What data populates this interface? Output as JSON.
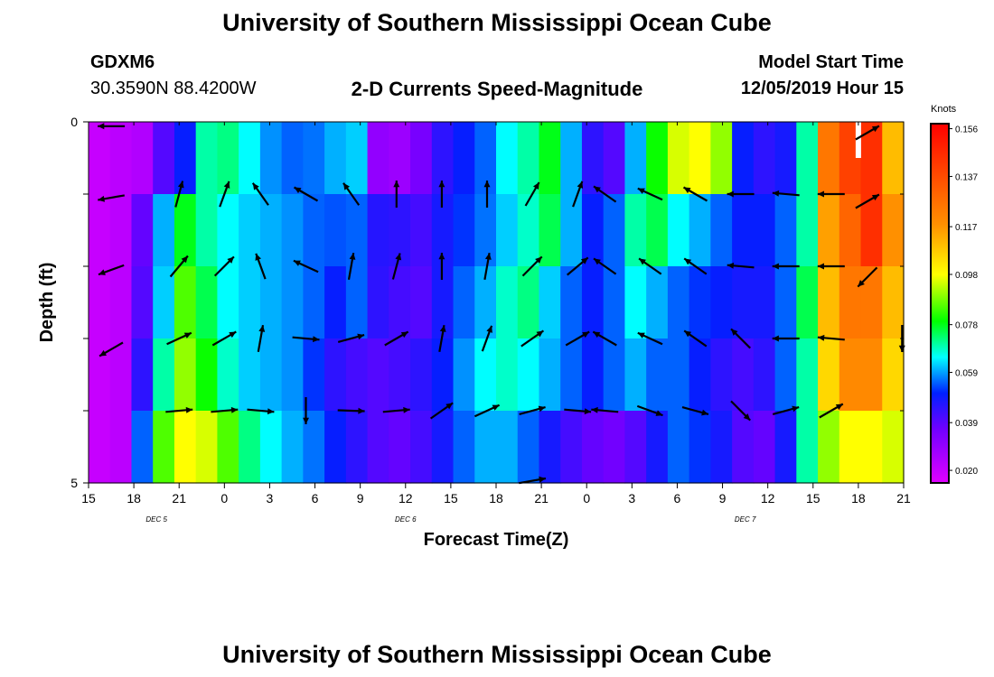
{
  "page": {
    "title_top": "University of Southern Mississippi Ocean Cube",
    "title_bottom": "University of Southern Mississippi Ocean Cube",
    "station": "GDXM6",
    "coords": "30.3590N 88.4200W",
    "subtitle": "2-D Currents Speed-Magnitude",
    "model_label": "Model Start Time",
    "model_time": "12/05/2019 Hour 15"
  },
  "chart_data": {
    "type": "heatmap",
    "title": "2-D Currents Speed-Magnitude",
    "xlabel": "Forecast Time(Z)",
    "ylabel": "Depth (ft)",
    "x_start_hour": 15,
    "x_range_hours": [
      0,
      54
    ],
    "x_tick_labels": [
      "15",
      "18",
      "21",
      "0",
      "3",
      "6",
      "9",
      "12",
      "15",
      "18",
      "21",
      "0",
      "3",
      "6",
      "9",
      "12",
      "15",
      "18",
      "21"
    ],
    "day_labels": [
      {
        "text": "DEC 5",
        "hour": 19.5
      },
      {
        "text": "DEC 6",
        "hour": 36
      },
      {
        "text": "DEC 7",
        "hour": 58.5
      }
    ],
    "y_range": [
      0,
      5
    ],
    "y_tick_labels": [
      "0",
      "5"
    ],
    "colorbar": {
      "unit": "Knots",
      "ticks": [
        0.02,
        0.039,
        0.059,
        0.078,
        0.098,
        0.117,
        0.137,
        0.156
      ],
      "tick_labels": [
        "0.020",
        "0.039",
        "0.059",
        "0.078",
        "0.098",
        "0.117",
        "0.137",
        "0.156"
      ],
      "range": [
        0.015,
        0.158
      ]
    },
    "depth_rows": [
      0.5,
      1.5,
      2.5,
      3.5,
      4.5
    ],
    "hour_step": 1.5,
    "speed_knots": [
      [
        0.02,
        0.022,
        0.024,
        0.04,
        0.05,
        0.07,
        0.072,
        0.065,
        0.058,
        0.055,
        0.056,
        0.06,
        0.062,
        0.03,
        0.028,
        0.035,
        0.045,
        0.05,
        0.055,
        0.065,
        0.07,
        0.078,
        0.06,
        0.045,
        0.04,
        0.06,
        0.08,
        0.095,
        0.098,
        0.09,
        0.05,
        0.045,
        0.048,
        0.07,
        0.125,
        0.14,
        0.145,
        0.11
      ],
      [
        0.02,
        0.022,
        0.038,
        0.06,
        0.078,
        0.07,
        0.065,
        0.062,
        0.06,
        0.058,
        0.055,
        0.054,
        0.055,
        0.046,
        0.045,
        0.042,
        0.048,
        0.052,
        0.056,
        0.062,
        0.068,
        0.075,
        0.06,
        0.05,
        0.055,
        0.07,
        0.075,
        0.065,
        0.06,
        0.055,
        0.05,
        0.05,
        0.055,
        0.07,
        0.115,
        0.13,
        0.145,
        0.118
      ],
      [
        0.02,
        0.022,
        0.04,
        0.062,
        0.085,
        0.075,
        0.065,
        0.062,
        0.06,
        0.058,
        0.055,
        0.05,
        0.055,
        0.045,
        0.042,
        0.04,
        0.048,
        0.055,
        0.06,
        0.068,
        0.072,
        0.062,
        0.055,
        0.05,
        0.055,
        0.065,
        0.06,
        0.055,
        0.052,
        0.05,
        0.048,
        0.048,
        0.055,
        0.075,
        0.11,
        0.125,
        0.125,
        0.11
      ],
      [
        0.02,
        0.022,
        0.045,
        0.07,
        0.09,
        0.08,
        0.068,
        0.062,
        0.06,
        0.058,
        0.052,
        0.045,
        0.042,
        0.04,
        0.042,
        0.045,
        0.05,
        0.058,
        0.065,
        0.068,
        0.065,
        0.06,
        0.055,
        0.05,
        0.055,
        0.06,
        0.055,
        0.055,
        0.05,
        0.045,
        0.042,
        0.045,
        0.055,
        0.07,
        0.105,
        0.12,
        0.12,
        0.105
      ],
      [
        0.02,
        0.022,
        0.055,
        0.085,
        0.098,
        0.095,
        0.085,
        0.072,
        0.065,
        0.06,
        0.056,
        0.05,
        0.045,
        0.04,
        0.038,
        0.042,
        0.048,
        0.055,
        0.06,
        0.06,
        0.055,
        0.048,
        0.042,
        0.038,
        0.036,
        0.04,
        0.048,
        0.055,
        0.052,
        0.048,
        0.04,
        0.038,
        0.048,
        0.07,
        0.09,
        0.098,
        0.098,
        0.095
      ]
    ],
    "arrows": [
      {
        "hour": 16.5,
        "depth": 0.06,
        "dir": 180
      },
      {
        "hour": 16.5,
        "depth": 1.05,
        "dir": 190
      },
      {
        "hour": 16.5,
        "depth": 2.05,
        "dir": 200
      },
      {
        "hour": 16.5,
        "depth": 3.15,
        "dir": 210
      },
      {
        "hour": 19.5,
        "depth": 0.4,
        "dir": null
      },
      {
        "hour": 21.0,
        "depth": 1.0,
        "dir": 75
      },
      {
        "hour": 21.0,
        "depth": 2.0,
        "dir": 50
      },
      {
        "hour": 21.0,
        "depth": 3.0,
        "dir": 25
      },
      {
        "hour": 21.0,
        "depth": 4.0,
        "dir": 5
      },
      {
        "hour": 24.0,
        "depth": 1.0,
        "dir": 70
      },
      {
        "hour": 24.0,
        "depth": 2.0,
        "dir": 45
      },
      {
        "hour": 24.0,
        "depth": 3.0,
        "dir": 30
      },
      {
        "hour": 24.0,
        "depth": 4.0,
        "dir": 5
      },
      {
        "hour": 26.4,
        "depth": 1.0,
        "dir": 125
      },
      {
        "hour": 26.4,
        "depth": 2.0,
        "dir": 110
      },
      {
        "hour": 26.4,
        "depth": 3.0,
        "dir": 80
      },
      {
        "hour": 26.4,
        "depth": 4.0,
        "dir": -5
      },
      {
        "hour": 29.4,
        "depth": 1.0,
        "dir": 150
      },
      {
        "hour": 29.4,
        "depth": 2.0,
        "dir": 155
      },
      {
        "hour": 29.4,
        "depth": 3.0,
        "dir": -5
      },
      {
        "hour": 29.4,
        "depth": 4.0,
        "dir": -90
      },
      {
        "hour": 32.4,
        "depth": 1.0,
        "dir": 125
      },
      {
        "hour": 32.4,
        "depth": 2.0,
        "dir": 80
      },
      {
        "hour": 32.4,
        "depth": 3.0,
        "dir": 15
      },
      {
        "hour": 32.4,
        "depth": 4.0,
        "dir": -2
      },
      {
        "hour": 35.4,
        "depth": 1.0,
        "dir": 90
      },
      {
        "hour": 35.4,
        "depth": 2.0,
        "dir": 75
      },
      {
        "hour": 35.4,
        "depth": 3.0,
        "dir": 30
      },
      {
        "hour": 35.4,
        "depth": 4.0,
        "dir": 5
      },
      {
        "hour": 38.4,
        "depth": 1.0,
        "dir": 90
      },
      {
        "hour": 38.4,
        "depth": 2.0,
        "dir": 90
      },
      {
        "hour": 38.4,
        "depth": 3.0,
        "dir": 80
      },
      {
        "hour": 38.4,
        "depth": 4.0,
        "dir": 35
      },
      {
        "hour": 41.4,
        "depth": 1.0,
        "dir": 90
      },
      {
        "hour": 41.4,
        "depth": 2.0,
        "dir": 80
      },
      {
        "hour": 41.4,
        "depth": 3.0,
        "dir": 70
      },
      {
        "hour": 41.4,
        "depth": 4.0,
        "dir": 25
      },
      {
        "hour": 44.4,
        "depth": 1.0,
        "dir": 60
      },
      {
        "hour": 44.4,
        "depth": 2.0,
        "dir": 45
      },
      {
        "hour": 44.4,
        "depth": 3.0,
        "dir": 35
      },
      {
        "hour": 44.4,
        "depth": 4.0,
        "dir": 15
      },
      {
        "hour": 44.4,
        "depth": 4.97,
        "dir": 10
      },
      {
        "hour": 47.4,
        "depth": 1.0,
        "dir": 70
      },
      {
        "hour": 47.4,
        "depth": 2.0,
        "dir": 40
      },
      {
        "hour": 47.4,
        "depth": 3.0,
        "dir": 30
      },
      {
        "hour": 47.4,
        "depth": 4.0,
        "dir": -5
      },
      {
        "hour": 49.2,
        "depth": 1.0,
        "dir": 145
      },
      {
        "hour": 49.2,
        "depth": 2.0,
        "dir": 145
      },
      {
        "hour": 49.2,
        "depth": 3.0,
        "dir": 150
      },
      {
        "hour": 49.2,
        "depth": 4.0,
        "dir": 175
      },
      {
        "hour": 52.2,
        "depth": 1.0,
        "dir": 155
      },
      {
        "hour": 52.2,
        "depth": 2.0,
        "dir": 145
      },
      {
        "hour": 52.2,
        "depth": 3.0,
        "dir": 155
      },
      {
        "hour": 52.2,
        "depth": 4.0,
        "dir": -20
      },
      {
        "hour": 55.2,
        "depth": 1.0,
        "dir": 150
      },
      {
        "hour": 55.2,
        "depth": 2.0,
        "dir": 145
      },
      {
        "hour": 55.2,
        "depth": 3.0,
        "dir": 145
      },
      {
        "hour": 55.2,
        "depth": 4.0,
        "dir": -15
      },
      {
        "hour": 58.2,
        "depth": 1.0,
        "dir": 180
      },
      {
        "hour": 58.2,
        "depth": 2.0,
        "dir": 175
      },
      {
        "hour": 58.2,
        "depth": 3.0,
        "dir": 135
      },
      {
        "hour": 58.2,
        "depth": 4.0,
        "dir": -45
      },
      {
        "hour": 61.2,
        "depth": 1.0,
        "dir": 175
      },
      {
        "hour": 61.2,
        "depth": 2.0,
        "dir": 180
      },
      {
        "hour": 61.2,
        "depth": 3.0,
        "dir": 180
      },
      {
        "hour": 61.2,
        "depth": 4.0,
        "dir": 15
      },
      {
        "hour": 64.2,
        "depth": 1.0,
        "dir": 180
      },
      {
        "hour": 64.2,
        "depth": 2.0,
        "dir": 180
      },
      {
        "hour": 64.2,
        "depth": 3.0,
        "dir": 175
      },
      {
        "hour": 64.2,
        "depth": 4.0,
        "dir": 30
      },
      {
        "hour": 66.6,
        "depth": 0.15,
        "dir": 30
      },
      {
        "hour": 66.6,
        "depth": 1.1,
        "dir": 30
      },
      {
        "hour": 66.6,
        "depth": 2.15,
        "dir": -135
      },
      {
        "hour": 68.9,
        "depth": 3.0,
        "dir": -90
      }
    ]
  }
}
